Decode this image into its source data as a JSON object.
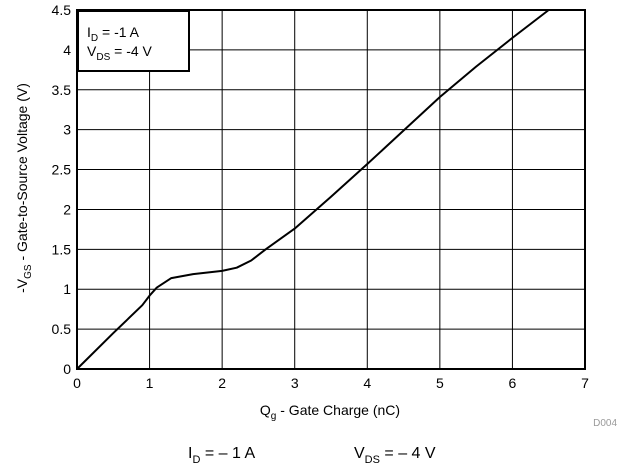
{
  "chart_data": {
    "type": "line",
    "title": "",
    "xlabel": {
      "main": "Q",
      "sub": "g",
      "rest": " - Gate Charge (nC)"
    },
    "ylabel": {
      "pre": "-V",
      "sub": "GS",
      "rest": " - Gate-to-Source Voltage (V)"
    },
    "xlim": [
      0,
      7
    ],
    "ylim": [
      0,
      4.5
    ],
    "xticks": [
      0,
      1,
      2,
      3,
      4,
      5,
      6,
      7
    ],
    "yticks": [
      0,
      0.5,
      1,
      1.5,
      2,
      2.5,
      3,
      3.5,
      4,
      4.5
    ],
    "xtick_labels": [
      "0",
      "1",
      "2",
      "3",
      "4",
      "5",
      "6",
      "7"
    ],
    "ytick_labels": [
      "0",
      "0.5",
      "1",
      "1.5",
      "2",
      "2.5",
      "3",
      "3.5",
      "4",
      "4.5"
    ],
    "grid": true,
    "legend": {
      "placement": "top-left",
      "line1": {
        "main": "I",
        "sub": "D",
        "rest": " = -1 A"
      },
      "line2": {
        "main": "V",
        "sub": "DS",
        "rest": " = -4 V"
      }
    },
    "series": [
      {
        "x": [
          0,
          0.5,
          0.9,
          1.0,
          1.1,
          1.3,
          1.6,
          2.0,
          2.2,
          2.4,
          2.6,
          3.0,
          3.5,
          4.0,
          4.5,
          5.0,
          5.5,
          6.0,
          6.5
        ],
        "y": [
          0,
          0.45,
          0.8,
          0.92,
          1.02,
          1.14,
          1.19,
          1.23,
          1.27,
          1.36,
          1.5,
          1.76,
          2.16,
          2.57,
          2.99,
          3.41,
          3.79,
          4.15,
          4.5
        ]
      }
    ]
  },
  "figure_id": "D004",
  "caption": {
    "id_main": "I",
    "id_sub": "D",
    "id_rest": " =  – 1 A",
    "vds_main": "V",
    "vds_sub": "DS",
    "vds_rest": " =  – 4 V"
  }
}
